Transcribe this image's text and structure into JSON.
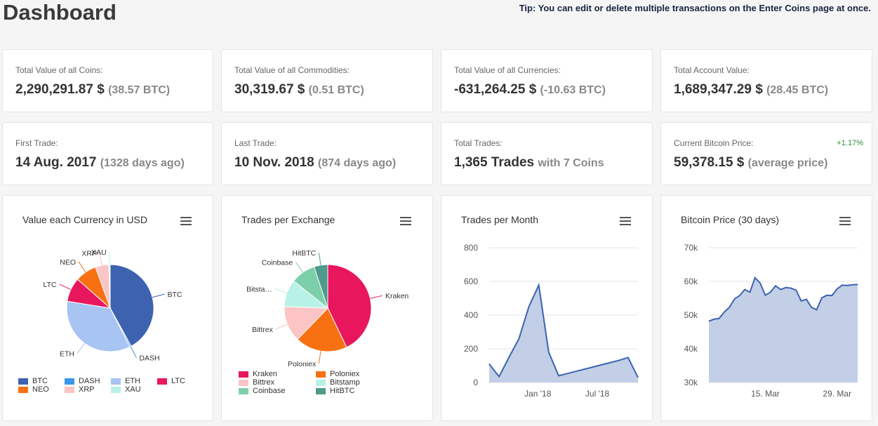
{
  "header": {
    "title": "Dashboard",
    "tip": "Tip: You can edit or delete multiple transactions on the Enter Coins page at once."
  },
  "stats": [
    {
      "label": "Total Value of all Coins:",
      "value": "2,290,291.87 $",
      "sub": "(38.57 BTC)"
    },
    {
      "label": "Total Value of all Commodities:",
      "value": "30,319.67 $",
      "sub": "(0.51 BTC)"
    },
    {
      "label": "Total Value of all Currencies:",
      "value": "-631,264.25 $",
      "sub": "(-10.63 BTC)"
    },
    {
      "label": "Total Account Value:",
      "value": "1,689,347.29 $",
      "sub": "(28.45 BTC)"
    },
    {
      "label": "First Trade:",
      "value": "14 Aug. 2017",
      "sub": "(1328 days ago)"
    },
    {
      "label": "Last Trade:",
      "value": "10 Nov. 2018",
      "sub": "(874 days ago)"
    },
    {
      "label": "Total Trades:",
      "value": "1,365 Trades",
      "sub": "with 7 Coins"
    },
    {
      "label": "Current Bitcoin Price:",
      "value": "59,378.15 $",
      "sub": "(average price)",
      "badge": "+1.17%"
    }
  ],
  "charts": {
    "currency": {
      "title": "Value each Currency in USD"
    },
    "exchange": {
      "title": "Trades per Exchange"
    },
    "month": {
      "title": "Trades per Month"
    },
    "btc": {
      "title": "Bitcoin Price (30 days)"
    }
  },
  "chart_data": [
    {
      "type": "pie",
      "title": "Value each Currency in USD",
      "slices": [
        {
          "name": "BTC",
          "value": 42,
          "color": "#3d63b0"
        },
        {
          "name": "DASH",
          "value": 0.5,
          "color": "#3a97e6"
        },
        {
          "name": "ETH",
          "value": 35,
          "color": "#a8c4f2"
        },
        {
          "name": "LTC",
          "value": 9,
          "color": "#e8175d"
        },
        {
          "name": "NEO",
          "value": 8,
          "color": "#f77112"
        },
        {
          "name": "XRP",
          "value": 5,
          "color": "#fcc4c4"
        },
        {
          "name": "XAU",
          "value": 0.5,
          "color": "#b8f2e6"
        }
      ],
      "legend_position": "bottom"
    },
    {
      "type": "pie",
      "title": "Trades per Exchange",
      "slices": [
        {
          "name": "Kraken",
          "value": 42,
          "color": "#e8175d"
        },
        {
          "name": "Poloniex",
          "value": 19,
          "color": "#f77112"
        },
        {
          "name": "Bittrex",
          "value": 13,
          "color": "#fcc4c4"
        },
        {
          "name": "Bitstamp",
          "value": 10,
          "color": "#b8f2e6"
        },
        {
          "name": "Coinbase",
          "value": 9,
          "color": "#7dcfa9"
        },
        {
          "name": "HitBTC",
          "value": 5,
          "color": "#4e9a8c"
        }
      ],
      "legend_labels": [
        "Kraken",
        "Poloniex",
        "Bittrex",
        "Bitstamp",
        "Coinbase",
        "HitBTC"
      ],
      "pie_labels": [
        "Kraken",
        "Poloniex",
        "Bittrex",
        "Bitsta…",
        "Coinbase",
        "HitBTC"
      ],
      "legend_position": "bottom"
    },
    {
      "type": "area",
      "title": "Trades per Month",
      "x": [
        "2017-08",
        "2017-09",
        "2017-10",
        "2017-11",
        "2017-12",
        "2018-01",
        "2018-02",
        "2018-03",
        "2018-04",
        "2018-05",
        "2018-06",
        "2018-07",
        "2018-08",
        "2018-09",
        "2018-10",
        "2018-11"
      ],
      "values": [
        110,
        35,
        150,
        260,
        450,
        578,
        180,
        40,
        55,
        70,
        85,
        100,
        115,
        130,
        148,
        30
      ],
      "xticks": [
        "Jan '18",
        "Jul '18"
      ],
      "yticks": [
        0,
        200,
        400,
        600,
        800
      ],
      "ylim": [
        0,
        800
      ],
      "color": "#3d63b0"
    },
    {
      "type": "area",
      "title": "Bitcoin Price (30 days)",
      "x": [
        "2021-03-04",
        "2021-03-05",
        "2021-03-06",
        "2021-03-07",
        "2021-03-08",
        "2021-03-09",
        "2021-03-10",
        "2021-03-11",
        "2021-03-12",
        "2021-03-13",
        "2021-03-14",
        "2021-03-15",
        "2021-03-16",
        "2021-03-17",
        "2021-03-18",
        "2021-03-19",
        "2021-03-20",
        "2021-03-21",
        "2021-03-22",
        "2021-03-23",
        "2021-03-24",
        "2021-03-25",
        "2021-03-26",
        "2021-03-27",
        "2021-03-28",
        "2021-03-29",
        "2021-03-30",
        "2021-03-31",
        "2021-04-01",
        "2021-04-02"
      ],
      "values": [
        48200,
        48800,
        49000,
        50900,
        52300,
        54800,
        55800,
        57600,
        56800,
        61100,
        59500,
        55900,
        56800,
        58700,
        57600,
        58200,
        58000,
        57400,
        54200,
        54700,
        52300,
        51600,
        55100,
        55900,
        55800,
        57800,
        58900,
        58800,
        59000,
        59100
      ],
      "xticks": [
        "15. Mar",
        "29. Mar"
      ],
      "yticks": [
        "30k",
        "40k",
        "50k",
        "60k",
        "70k"
      ],
      "ylim": [
        30000,
        70000
      ],
      "color": "#3d63b0"
    }
  ]
}
